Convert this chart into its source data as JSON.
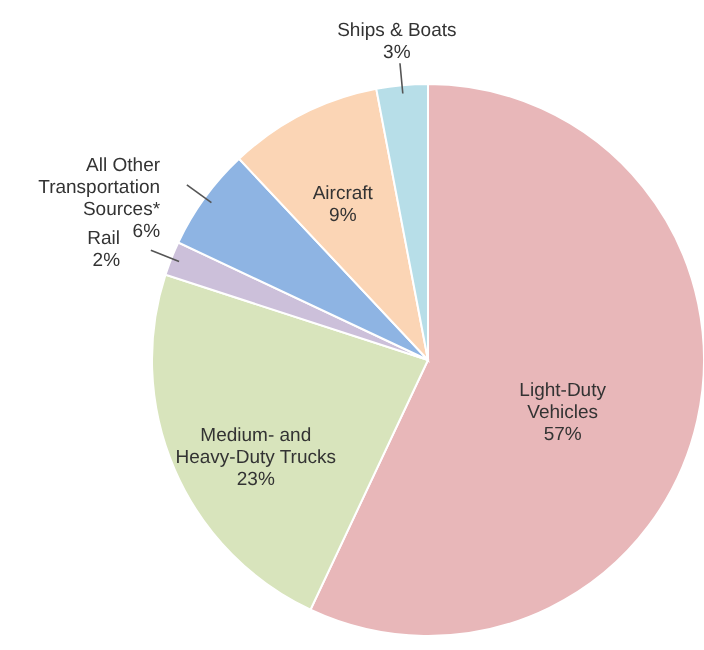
{
  "chart_data": {
    "type": "pie",
    "categories": [
      "Light-Duty Vehicles",
      "Medium- and Heavy-Duty Trucks",
      "Rail",
      "All Other Transportation Sources*",
      "Aircraft",
      "Ships & Boats"
    ],
    "values": [
      57,
      23,
      2,
      6,
      9,
      3
    ],
    "value_labels": [
      "57%",
      "23%",
      "2%",
      "6%",
      "9%",
      "3%"
    ],
    "colors": [
      "#e8b7b9",
      "#d8e4bc",
      "#ccc0da",
      "#8eb4e3",
      "#fbd5b5",
      "#b7dee8"
    ]
  }
}
